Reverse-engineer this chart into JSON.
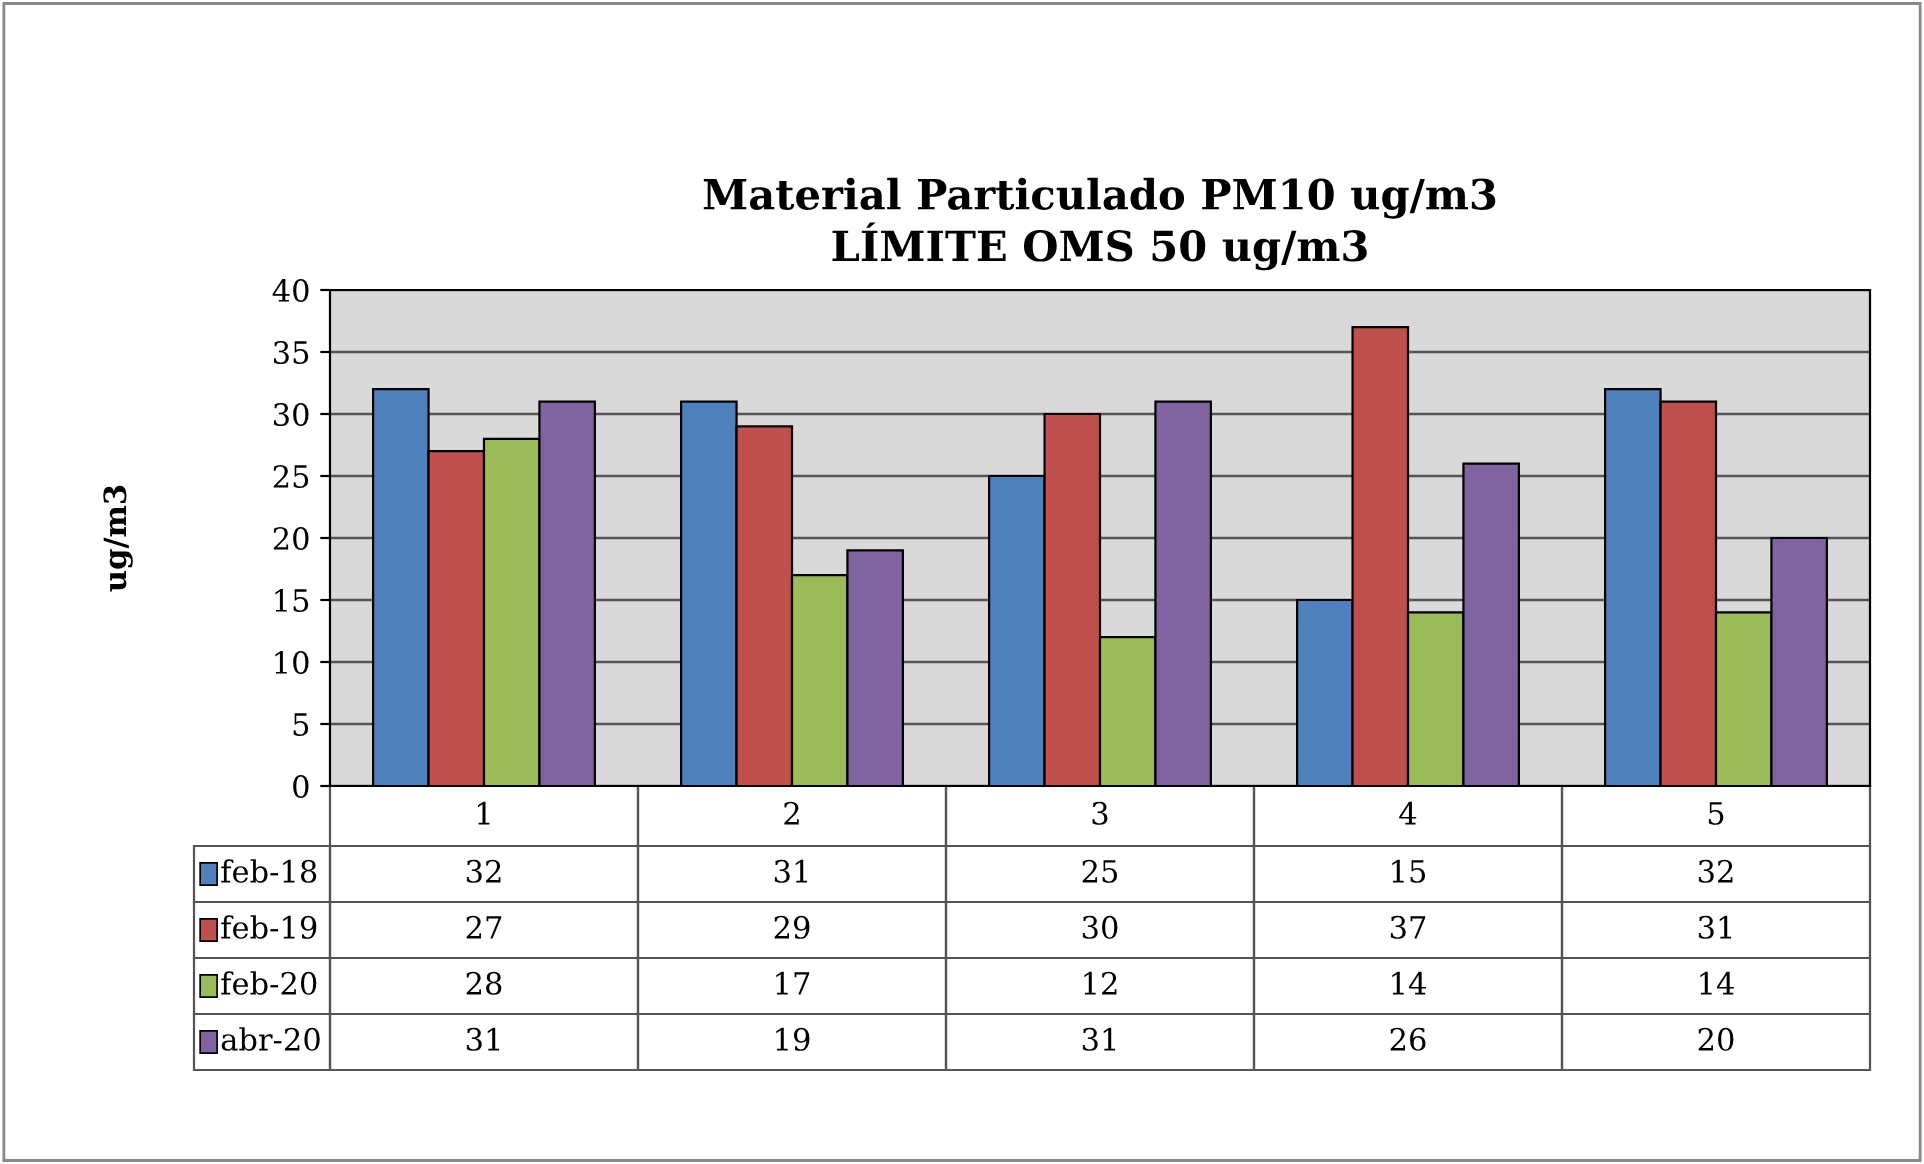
{
  "chart_data": {
    "type": "bar",
    "title": "Material Particulado PM10 ug/m3\nLÍMITE OMS 50 ug/m3",
    "ylabel": "ug/m3",
    "categories": [
      "1",
      "2",
      "3",
      "4",
      "5"
    ],
    "series": [
      {
        "name": "feb-18",
        "color": "#4f81bd",
        "values": [
          32,
          31,
          25,
          15,
          32
        ]
      },
      {
        "name": "feb-19",
        "color": "#c0504d",
        "values": [
          27,
          29,
          30,
          37,
          31
        ]
      },
      {
        "name": "feb-20",
        "color": "#9bbb59",
        "values": [
          28,
          17,
          12,
          14,
          14
        ]
      },
      {
        "name": "abr-20",
        "color": "#8064a2",
        "values": [
          31,
          19,
          31,
          26,
          20
        ]
      }
    ],
    "ylim": [
      0,
      40
    ],
    "yticks": [
      0,
      5,
      10,
      15,
      20,
      25,
      30,
      35,
      40
    ],
    "grid": "y",
    "legend": "bottom",
    "data_labels": true
  }
}
